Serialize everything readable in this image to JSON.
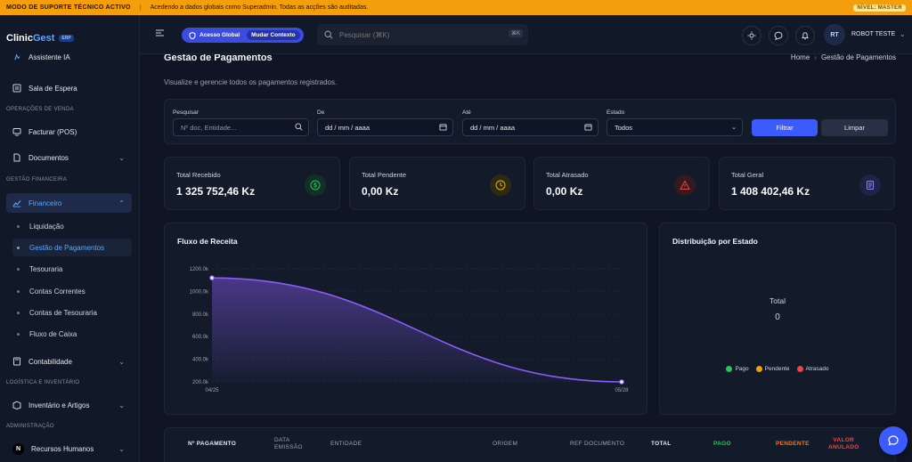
{
  "banner": {
    "title": "MODO DE SUPORTE TÉCNICO ACTIVO",
    "message": "Acedendo a dados globais como Superadmin. Todas as acções são auditadas.",
    "badge": "NÍVEL: MASTER"
  },
  "app": {
    "logo_main": "Clinic",
    "logo_accent": "Gest",
    "logo_badge": "ERP"
  },
  "sidebar": {
    "items": [
      {
        "label": "Assistente IA",
        "icon": "sparkle-icon"
      },
      {
        "label": "Sala de Espera",
        "icon": "clipboard-icon"
      },
      {
        "label": "Facturar (POS)",
        "icon": "monitor-icon"
      },
      {
        "label": "Documentos",
        "icon": "file-icon"
      },
      {
        "label": "Financeiro",
        "icon": "chart-line-icon"
      },
      {
        "label": "Contabilidade",
        "icon": "calculator-icon"
      },
      {
        "label": "Inventário e Artigos",
        "icon": "box-icon"
      },
      {
        "label": "Recursos Humanos",
        "icon": "people-icon"
      }
    ],
    "sections": [
      "OPERAÇÕES DE VENDA",
      "GESTÃO FINANCEIRA",
      "LOGÍSTICA E INVENTÁRIO",
      "ADMINISTRAÇÃO"
    ],
    "sub_items": [
      "Liquidação",
      "Gestão de Pagamentos",
      "Tesouraria",
      "Contas Correntes",
      "Contas de Tesouraria",
      "Fluxo de Caixa"
    ]
  },
  "topbar": {
    "context_global": "Acesso Global",
    "context_change": "Mudar Contexto",
    "search_placeholder": "Pesquisar (⌘K)",
    "search_kbd": "⌘K",
    "avatar_initials": "RT",
    "user_name": "ROBOT TESTE"
  },
  "page": {
    "title": "Gestão de Pagamentos",
    "subtitle": "Visualize e gerencie todos os pagamentos registrados.",
    "breadcrumb_home": "Home",
    "breadcrumb_current": "Gestão de Pagamentos"
  },
  "filters": {
    "search_label": "Pesquisar",
    "search_placeholder": "Nº doc, Entidade...",
    "from_label": "De",
    "from_value": "dd / mm / aaaa",
    "to_label": "Até",
    "to_value": "dd / mm / aaaa",
    "state_label": "Estado",
    "state_value": "Todos",
    "filter_button": "Filtrar",
    "clear_button": "Limpar"
  },
  "stats": [
    {
      "label": "Total Recebido",
      "value": "1 325 752,46 Kz",
      "icon": "dollar-icon",
      "color": "#22c55e"
    },
    {
      "label": "Total Pendente",
      "value": "0,00 Kz",
      "icon": "clock-icon",
      "color": "#eab308"
    },
    {
      "label": "Total Atrasado",
      "value": "0,00 Kz",
      "icon": "warning-icon",
      "color": "#ef4444"
    },
    {
      "label": "Total Geral",
      "value": "1 408 402,46 Kz",
      "icon": "receipt-icon",
      "color": "#6366f1"
    }
  ],
  "revenue_panel": {
    "title": "Fluxo de Receita"
  },
  "distribution_panel": {
    "title": "Distribuição por Estado",
    "total_label": "Total",
    "total_value": "0",
    "legend": [
      {
        "label": "Pago",
        "color": "#22c55e"
      },
      {
        "label": "Pendente",
        "color": "#f59e0b"
      },
      {
        "label": "Atrasado",
        "color": "#ef4444"
      }
    ]
  },
  "chart_data": {
    "type": "area",
    "title": "Fluxo de Receita",
    "x": [
      "04/25",
      "05/28"
    ],
    "values": [
      1120,
      200
    ],
    "y_ticks": [
      "1200.0k",
      "1000.0k",
      "800.0k",
      "600.0k",
      "400.0k",
      "200.0k"
    ],
    "ylim": [
      200,
      1200
    ],
    "color": "#8b5cf6"
  },
  "table": {
    "headers": [
      {
        "line1": "Nº PAGAMENTO",
        "line2": "",
        "color": "#e5e7eb"
      },
      {
        "line1": "DATA",
        "line2": "EMISSÃO",
        "color": "#9ca3af"
      },
      {
        "line1": "ENTIDADE",
        "line2": "",
        "color": "#9ca3af"
      },
      {
        "line1": "ORIGEM",
        "line2": "",
        "color": "#9ca3af"
      },
      {
        "line1": "REF DOCUMENTO",
        "line2": "",
        "color": "#9ca3af"
      },
      {
        "line1": "TOTAL",
        "line2": "",
        "color": "#e5e7eb"
      },
      {
        "line1": "PAGO",
        "line2": "",
        "color": "#22c55e"
      },
      {
        "line1": "PENDENTE",
        "line2": "",
        "color": "#f97316"
      },
      {
        "line1": "VALOR",
        "line2": "ANULADO",
        "color": "#ef4444"
      }
    ]
  }
}
